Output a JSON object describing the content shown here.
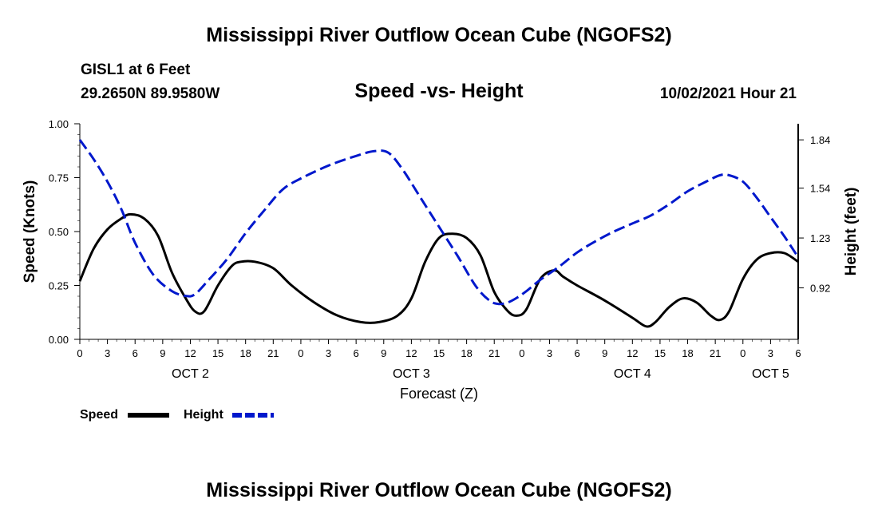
{
  "header": {
    "title": "Mississippi River Outflow Ocean Cube (NGOFS2)",
    "station": "GISL1 at 6 Feet",
    "coords": "29.2650N  89.9580W",
    "subtitle": "Speed -vs- Height",
    "datetime": "10/02/2021 Hour 21"
  },
  "footer": {
    "title": "Mississippi River Outflow Ocean Cube (NGOFS2)"
  },
  "chart_data": {
    "type": "line",
    "title": "Speed -vs- Height",
    "xlabel": "Forecast (Z)",
    "ylabel": "Speed (Knots)",
    "y2label": "Height (feet)",
    "x_hours_range": [
      0,
      78
    ],
    "x_ticks": [
      {
        "h": 0,
        "label": "0"
      },
      {
        "h": 3,
        "label": "3"
      },
      {
        "h": 6,
        "label": "6"
      },
      {
        "h": 9,
        "label": "9"
      },
      {
        "h": 12,
        "label": "12"
      },
      {
        "h": 15,
        "label": "15"
      },
      {
        "h": 18,
        "label": "18"
      },
      {
        "h": 21,
        "label": "21"
      },
      {
        "h": 24,
        "label": "0"
      },
      {
        "h": 27,
        "label": "3"
      },
      {
        "h": 30,
        "label": "6"
      },
      {
        "h": 33,
        "label": "9"
      },
      {
        "h": 36,
        "label": "12"
      },
      {
        "h": 39,
        "label": "15"
      },
      {
        "h": 42,
        "label": "18"
      },
      {
        "h": 45,
        "label": "21"
      },
      {
        "h": 48,
        "label": "0"
      },
      {
        "h": 51,
        "label": "3"
      },
      {
        "h": 54,
        "label": "6"
      },
      {
        "h": 57,
        "label": "9"
      },
      {
        "h": 60,
        "label": "12"
      },
      {
        "h": 63,
        "label": "15"
      },
      {
        "h": 66,
        "label": "18"
      },
      {
        "h": 69,
        "label": "21"
      },
      {
        "h": 72,
        "label": "0"
      },
      {
        "h": 75,
        "label": "3"
      },
      {
        "h": 78,
        "label": "6"
      }
    ],
    "day_labels": [
      {
        "h": 12,
        "label": "OCT 2"
      },
      {
        "h": 36,
        "label": "OCT 3"
      },
      {
        "h": 60,
        "label": "OCT 4"
      },
      {
        "h": 75,
        "label": "OCT 5"
      }
    ],
    "ylim": [
      0,
      1.0
    ],
    "y_ticks": [
      {
        "v": 0.0,
        "label": "0.00"
      },
      {
        "v": 0.25,
        "label": "0.25"
      },
      {
        "v": 0.5,
        "label": "0.50"
      },
      {
        "v": 0.75,
        "label": "0.75"
      },
      {
        "v": 1.0,
        "label": "1.00"
      }
    ],
    "y2lim": [
      0.6,
      1.94
    ],
    "y2_ticks": [
      {
        "v": 0.92,
        "label": "0.92"
      },
      {
        "v": 1.23,
        "label": "1.23"
      },
      {
        "v": 1.54,
        "label": "1.54"
      },
      {
        "v": 1.84,
        "label": "1.84"
      }
    ],
    "series": [
      {
        "name": "Speed",
        "axis": "left",
        "color": "#000000",
        "dash": "solid",
        "x": [
          0,
          1.5,
          3,
          4.5,
          5.5,
          7,
          8.5,
          10,
          11.5,
          12.5,
          13.5,
          15,
          16.5,
          17.5,
          19,
          21,
          23,
          25.5,
          28,
          30.5,
          32.5,
          34.5,
          36,
          37.5,
          39,
          40.5,
          42,
          43.5,
          45,
          46.5,
          47.5,
          48.5,
          50,
          51.5,
          52.5,
          54,
          57,
          60,
          61.5,
          62.5,
          64,
          65.5,
          67,
          68.5,
          69.5,
          70.5,
          72,
          73.5,
          75,
          76.5,
          78
        ],
        "y": [
          0.27,
          0.42,
          0.51,
          0.56,
          0.58,
          0.56,
          0.48,
          0.31,
          0.19,
          0.13,
          0.13,
          0.25,
          0.34,
          0.36,
          0.36,
          0.33,
          0.25,
          0.17,
          0.11,
          0.08,
          0.08,
          0.11,
          0.19,
          0.36,
          0.47,
          0.49,
          0.47,
          0.39,
          0.22,
          0.13,
          0.11,
          0.14,
          0.28,
          0.32,
          0.29,
          0.25,
          0.18,
          0.1,
          0.06,
          0.08,
          0.15,
          0.19,
          0.17,
          0.11,
          0.09,
          0.13,
          0.28,
          0.37,
          0.4,
          0.4,
          0.36
        ]
      },
      {
        "name": "Height",
        "axis": "right",
        "color": "#0018cc",
        "dash": "dashed",
        "x": [
          0,
          1.5,
          3,
          4.5,
          6,
          8,
          10,
          11.5,
          12.5,
          14,
          16,
          18,
          20,
          22,
          24,
          27,
          30,
          32,
          33.5,
          35,
          37,
          39,
          41,
          43,
          44.5,
          45.5,
          46.5,
          47.5,
          48.5,
          50,
          52,
          54,
          56,
          58,
          60,
          62,
          64,
          66,
          68,
          69.5,
          70.5,
          72,
          73.5,
          75,
          76.5,
          78
        ],
        "y": [
          1.84,
          1.72,
          1.58,
          1.41,
          1.2,
          1.0,
          0.9,
          0.87,
          0.88,
          0.97,
          1.1,
          1.26,
          1.4,
          1.53,
          1.6,
          1.68,
          1.74,
          1.77,
          1.76,
          1.66,
          1.48,
          1.3,
          1.12,
          0.93,
          0.84,
          0.82,
          0.83,
          0.86,
          0.9,
          0.97,
          1.05,
          1.14,
          1.21,
          1.27,
          1.32,
          1.37,
          1.44,
          1.52,
          1.58,
          1.62,
          1.62,
          1.58,
          1.48,
          1.36,
          1.24,
          1.11
        ]
      }
    ],
    "legend": [
      {
        "label": "Speed",
        "color": "#000000",
        "dash": "solid"
      },
      {
        "label": "Height",
        "color": "#0018cc",
        "dash": "dashed"
      }
    ],
    "legend_position": "bottom-left",
    "grid": false
  }
}
